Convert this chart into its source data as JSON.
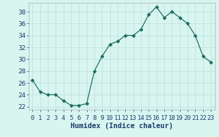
{
  "x": [
    0,
    1,
    2,
    3,
    4,
    5,
    6,
    7,
    8,
    9,
    10,
    11,
    12,
    13,
    14,
    15,
    16,
    17,
    18,
    19,
    20,
    21,
    22,
    23
  ],
  "y": [
    26.5,
    24.5,
    24.0,
    24.0,
    23.0,
    22.2,
    22.2,
    22.5,
    28.0,
    30.5,
    32.5,
    33.0,
    34.0,
    34.0,
    35.0,
    37.5,
    38.8,
    37.0,
    38.0,
    37.0,
    36.0,
    34.0,
    30.5,
    29.5
  ],
  "line_color": "#1a6b5a",
  "marker": "D",
  "marker_size": 2.5,
  "bg_color": "#d8f5f0",
  "grid_color": "#b8ddd8",
  "xlabel": "Humidex (Indice chaleur)",
  "ylabel": "",
  "ylim": [
    21.5,
    39.5
  ],
  "xlim": [
    -0.5,
    23.5
  ],
  "yticks": [
    22,
    24,
    26,
    28,
    30,
    32,
    34,
    36,
    38
  ],
  "xtick_labels": [
    "0",
    "1",
    "2",
    "3",
    "4",
    "5",
    "6",
    "7",
    "8",
    "9",
    "10",
    "11",
    "12",
    "13",
    "14",
    "15",
    "16",
    "17",
    "18",
    "19",
    "20",
    "21",
    "22",
    "23"
  ],
  "tick_fontsize": 6.5,
  "label_fontsize": 7.5
}
